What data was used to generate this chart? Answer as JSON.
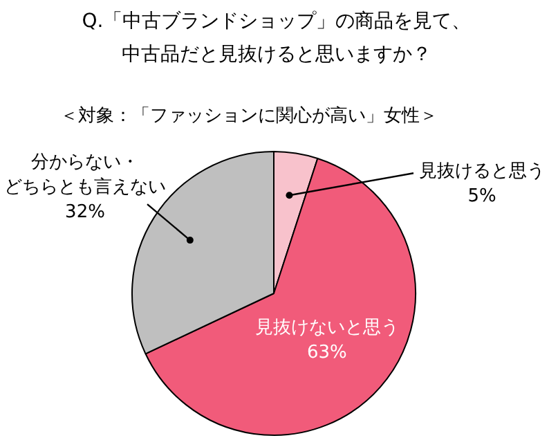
{
  "chart_data": {
    "type": "pie",
    "title": "Q.「中古ブランドショップ」の商品を見て、中古品だと見抜けると思いますか？",
    "subtitle": "＜対象：「ファッションに関心が高い」女性＞",
    "categories": [
      "見抜けると思う",
      "見抜けないと思う",
      "分からない・どちらとも言えない"
    ],
    "values": [
      5,
      63,
      32
    ],
    "value_labels": [
      "5%",
      "63%",
      "32%"
    ],
    "colors": [
      "#f8c2cc",
      "#f15b7a",
      "#bfbfbf"
    ],
    "legend": false
  }
}
